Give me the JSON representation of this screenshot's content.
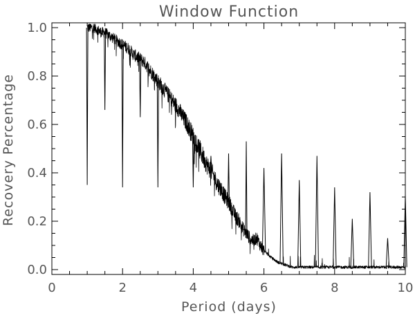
{
  "chart_data": {
    "type": "line",
    "title": "Window Function",
    "xlabel": "Period (days)",
    "ylabel": "Recovery Percentage",
    "xlim": [
      0,
      10
    ],
    "ylim": [
      -0.02,
      1.02
    ],
    "x_ticks": [
      0,
      2,
      4,
      6,
      8,
      10
    ],
    "x_tick_labels": [
      "0",
      "2",
      "4",
      "6",
      "8",
      "10"
    ],
    "y_ticks": [
      0.0,
      0.2,
      0.4,
      0.6,
      0.8,
      1.0
    ],
    "y_tick_labels": [
      "0.0",
      "0.2",
      "0.4",
      "0.6",
      "0.8",
      "1.0"
    ],
    "grid": false,
    "line_color": "#000000",
    "text_color": "#555555",
    "series": [
      {
        "x": [
          1.0,
          1.1,
          1.2,
          1.3,
          1.4,
          1.5,
          1.6,
          1.7,
          1.8,
          1.9,
          2.0,
          2.1,
          2.2,
          2.3,
          2.4,
          2.5,
          2.6,
          2.7,
          2.8,
          2.9,
          3.0,
          3.1,
          3.2,
          3.3,
          3.4,
          3.5,
          3.6,
          3.7,
          3.8,
          3.9,
          4.0,
          4.1,
          4.2,
          4.3,
          4.4,
          4.5,
          4.6,
          4.7,
          4.8,
          4.9,
          5.0,
          5.1,
          5.2,
          5.3,
          5.4,
          5.5,
          5.6,
          5.7,
          5.8,
          5.9,
          6.0,
          6.2,
          6.4,
          6.6,
          6.8,
          7.0,
          7.2,
          7.4,
          7.6,
          7.8,
          8.0,
          8.2,
          8.4,
          8.6,
          8.8,
          9.0,
          9.2,
          9.4,
          9.6,
          9.8,
          10.0
        ],
        "y": [
          1.0,
          1.0,
          1.0,
          0.99,
          0.98,
          0.98,
          0.97,
          0.96,
          0.95,
          0.94,
          0.93,
          0.92,
          0.91,
          0.89,
          0.88,
          0.87,
          0.86,
          0.84,
          0.82,
          0.8,
          0.78,
          0.76,
          0.74,
          0.72,
          0.7,
          0.68,
          0.66,
          0.63,
          0.61,
          0.58,
          0.55,
          0.52,
          0.49,
          0.46,
          0.43,
          0.41,
          0.38,
          0.35,
          0.33,
          0.3,
          0.28,
          0.25,
          0.22,
          0.2,
          0.17,
          0.15,
          0.13,
          0.12,
          0.13,
          0.1,
          0.08,
          0.05,
          0.03,
          0.02,
          0.01,
          0.01,
          0.01,
          0.01,
          0.01,
          0.01,
          0.01,
          0.01,
          0.01,
          0.01,
          0.01,
          0.01,
          0.01,
          0.01,
          0.01,
          0.01,
          0.01
        ]
      }
    ],
    "spikes": [
      {
        "x": 1.0,
        "y": 0.35
      },
      {
        "x": 1.5,
        "y": 0.66
      },
      {
        "x": 2.0,
        "y": 0.34
      },
      {
        "x": 2.5,
        "y": 0.63
      },
      {
        "x": 3.0,
        "y": 0.34
      },
      {
        "x": 3.5,
        "y": 0.65
      },
      {
        "x": 4.0,
        "y": 0.34
      },
      {
        "x": 4.5,
        "y": 0.47
      },
      {
        "x": 5.0,
        "y": 0.48
      },
      {
        "x": 5.5,
        "y": 0.53
      },
      {
        "x": 6.0,
        "y": 0.42
      },
      {
        "x": 6.5,
        "y": 0.48
      },
      {
        "x": 7.0,
        "y": 0.37
      },
      {
        "x": 7.5,
        "y": 0.47
      },
      {
        "x": 8.0,
        "y": 0.34
      },
      {
        "x": 8.5,
        "y": 0.21
      },
      {
        "x": 9.0,
        "y": 0.32
      },
      {
        "x": 9.5,
        "y": 0.13
      },
      {
        "x": 10.0,
        "y": 0.31
      }
    ]
  }
}
